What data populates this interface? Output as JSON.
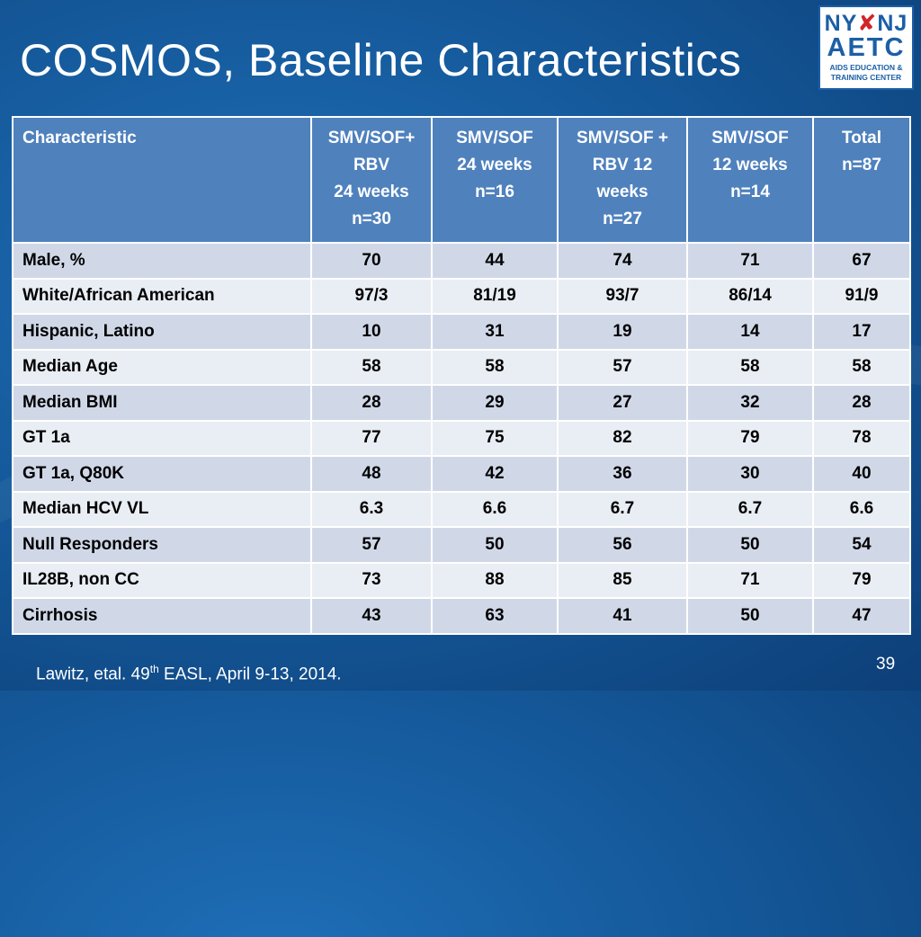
{
  "slide": {
    "title": "COSMOS, Baseline Characteristics",
    "page_number": "39",
    "citation": {
      "prefix": "Lawitz, etal. 49",
      "superscript": "th",
      "suffix": " EASL, April 9-13, 2014."
    }
  },
  "logo": {
    "line1_left": "NY",
    "line1_ribbon": "✘",
    "line1_right": "NJ",
    "line2": "AETC",
    "line3": "AIDS EDUCATION &",
    "line4": "TRAINING CENTER"
  },
  "table": {
    "headers": [
      [
        "Characteristic"
      ],
      [
        "SMV/SOF+",
        "RBV",
        "24 weeks",
        "n=30"
      ],
      [
        "SMV/SOF",
        "24 weeks",
        "n=16"
      ],
      [
        "SMV/SOF +",
        "RBV 12",
        "weeks",
        "n=27"
      ],
      [
        "SMV/SOF",
        "12 weeks",
        "n=14"
      ],
      [
        "Total",
        "n=87"
      ]
    ],
    "rows": [
      [
        "Male, %",
        "70",
        "44",
        "74",
        "71",
        "67"
      ],
      [
        "White/African American",
        "97/3",
        "81/19",
        "93/7",
        "86/14",
        "91/9"
      ],
      [
        "Hispanic, Latino",
        "10",
        "31",
        "19",
        "14",
        "17"
      ],
      [
        "Median Age",
        "58",
        "58",
        "57",
        "58",
        "58"
      ],
      [
        "Median BMI",
        "28",
        "29",
        "27",
        "32",
        "28"
      ],
      [
        "GT 1a",
        "77",
        "75",
        "82",
        "79",
        "78"
      ],
      [
        "GT 1a, Q80K",
        "48",
        "42",
        "36",
        "30",
        "40"
      ],
      [
        "Median HCV VL",
        "6.3",
        "6.6",
        "6.7",
        "6.7",
        "6.6"
      ],
      [
        "Null Responders",
        "57",
        "50",
        "56",
        "50",
        "54"
      ],
      [
        "IL28B, non CC",
        "73",
        "88",
        "85",
        "71",
        "79"
      ],
      [
        "Cirrhosis",
        "43",
        "63",
        "41",
        "50",
        "47"
      ]
    ]
  },
  "colors": {
    "header_fill": "#4f81bd",
    "row_odd_fill": "#d0d8e8",
    "row_even_fill": "#e9edf4",
    "background": "#155a9c",
    "logo_blue": "#1b5fa6",
    "logo_red": "#d2232a"
  }
}
